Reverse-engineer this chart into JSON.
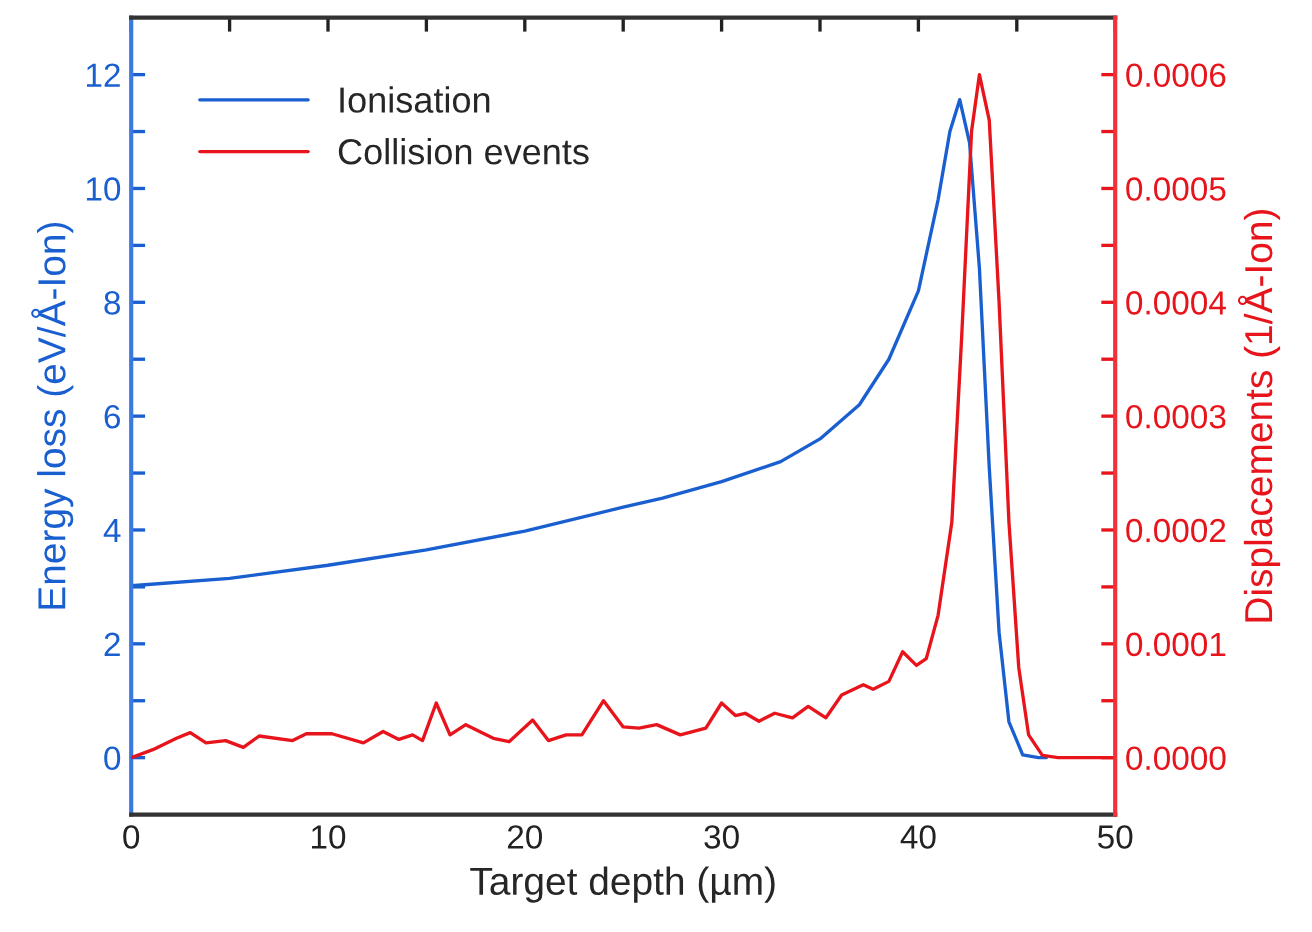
{
  "chart_data": {
    "type": "line",
    "xlabel": "Target depth (µm)",
    "ylabel": "Energy loss (eV/Å-Ion)",
    "y2label": "Displacements (1/Å-Ion)",
    "xlim": [
      0,
      50
    ],
    "xticks": [
      0,
      {
        "value": 5,
        "label": null
      },
      10,
      {
        "value": 15,
        "label": null
      },
      20,
      {
        "value": 25,
        "label": null
      },
      30,
      {
        "value": 35,
        "label": null
      },
      40,
      {
        "value": 45,
        "label": null
      },
      50
    ],
    "ylim": [
      -1,
      13
    ],
    "yticks": [
      0,
      {
        "value": 1,
        "label": null
      },
      2,
      {
        "value": 3,
        "label": null
      },
      4,
      {
        "value": 5,
        "label": null
      },
      6,
      {
        "value": 7,
        "label": null
      },
      8,
      {
        "value": 9,
        "label": null
      },
      10,
      {
        "value": 11,
        "label": null
      },
      12
    ],
    "y2lim": [
      -5e-05,
      0.00065
    ],
    "y2ticks": [
      {
        "value": 0,
        "label": "0.0000"
      },
      {
        "value": 5e-05,
        "label": null
      },
      {
        "value": 0.0001,
        "label": "0.0001"
      },
      {
        "value": 0.00015,
        "label": null
      },
      {
        "value": 0.0002,
        "label": "0.0002"
      },
      {
        "value": 0.00025,
        "label": null
      },
      {
        "value": 0.0003,
        "label": "0.0003"
      },
      {
        "value": 0.00035,
        "label": null
      },
      {
        "value": 0.0004,
        "label": "0.0004"
      },
      {
        "value": 0.00045,
        "label": null
      },
      {
        "value": 0.0005,
        "label": "0.0005"
      },
      {
        "value": 0.00055,
        "label": null
      },
      {
        "value": 0.0006,
        "label": "0.0006"
      }
    ],
    "grid": false,
    "legend": "top left",
    "marker": "none",
    "line_style": "solid",
    "series": [
      {
        "name": "Ionisation",
        "color": "#1a5fd0",
        "x": [
          0,
          5,
          10,
          15,
          20,
          25,
          27,
          30,
          33,
          35,
          37,
          38.5,
          40,
          41,
          41.6,
          42.1,
          42.6,
          43.1,
          43.6,
          44.1,
          44.6,
          45.3,
          46.1,
          46.5
        ],
        "values": [
          3.02,
          3.15,
          3.38,
          3.65,
          3.98,
          4.4,
          4.56,
          4.85,
          5.2,
          5.6,
          6.2,
          7.0,
          8.2,
          9.8,
          11.0,
          11.56,
          10.8,
          8.6,
          5.1,
          2.2,
          0.63,
          0.05,
          0,
          0
        ]
      },
      {
        "name": "Collision events",
        "color": "#e8141c",
        "axis": "y2",
        "x": [
          0,
          1.1,
          2.3,
          3.0,
          3.8,
          4.8,
          5.7,
          6.5,
          8.2,
          8.9,
          10.2,
          11.8,
          12.8,
          13.6,
          14.3,
          14.8,
          15.5,
          16.2,
          17.0,
          18.4,
          19.2,
          20.4,
          21.2,
          22.1,
          22.9,
          24.0,
          25.0,
          25.8,
          26.7,
          27.9,
          29.2,
          30.0,
          30.7,
          31.2,
          31.9,
          32.7,
          33.6,
          34.4,
          35.3,
          36.1,
          37.2,
          37.7,
          38.5,
          39.2,
          39.9,
          40.4,
          41.0,
          41.7,
          42.2,
          42.7,
          43.1,
          43.6,
          44.1,
          44.6,
          45.1,
          45.6,
          46.3,
          47.1,
          50
        ],
        "values": [
          0,
          7e-06,
          1.7e-05,
          2.2e-05,
          1.3e-05,
          1.5e-05,
          9e-06,
          1.9e-05,
          1.5e-05,
          2.1e-05,
          2.1e-05,
          1.3e-05,
          2.3e-05,
          1.6e-05,
          2e-05,
          1.5e-05,
          4.8e-05,
          2e-05,
          2.9e-05,
          1.7e-05,
          1.4e-05,
          3.3e-05,
          1.5e-05,
          2e-05,
          2e-05,
          5e-05,
          2.7e-05,
          2.6e-05,
          2.9e-05,
          2e-05,
          2.6e-05,
          4.8e-05,
          3.7e-05,
          3.9e-05,
          3.2e-05,
          3.9e-05,
          3.5e-05,
          4.5e-05,
          3.5e-05,
          5.5e-05,
          6.4e-05,
          6e-05,
          6.7e-05,
          9.3e-05,
          8.1e-05,
          8.7e-05,
          0.000125,
          0.000207,
          0.00037,
          0.00055,
          0.0006,
          0.00056,
          0.0004,
          0.000207,
          7.9e-05,
          2e-05,
          2e-06,
          0,
          0
        ]
      }
    ]
  }
}
